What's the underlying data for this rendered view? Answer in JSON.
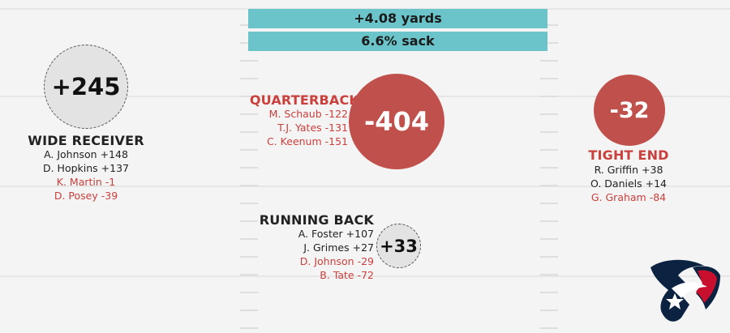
{
  "banners": {
    "yards": "+4.08 yards",
    "sack": "6.6% sack"
  },
  "wide_receiver": {
    "title": "WIDE RECEIVER",
    "total": "+245",
    "players": [
      {
        "label": "A. Johnson +148",
        "positive": true
      },
      {
        "label": "D. Hopkins +137",
        "positive": true
      },
      {
        "label": "K. Martin -1",
        "positive": false
      },
      {
        "label": "D. Posey -39",
        "positive": false
      }
    ]
  },
  "quarterback": {
    "title": "QUARTERBACK",
    "total": "-404",
    "players": [
      {
        "label": "M. Schaub -122",
        "positive": false
      },
      {
        "label": "T.J. Yates -131",
        "positive": false
      },
      {
        "label": "C. Keenum -151",
        "positive": false
      }
    ]
  },
  "tight_end": {
    "title": "TIGHT END",
    "total": "-32",
    "players": [
      {
        "label": "R. Griffin +38",
        "positive": true
      },
      {
        "label": "O. Daniels +14",
        "positive": true
      },
      {
        "label": "G. Graham -84",
        "positive": false
      }
    ]
  },
  "running_back": {
    "title": "RUNNING BACK",
    "total": "+33",
    "players": [
      {
        "label": "A. Foster +107",
        "positive": true
      },
      {
        "label": "J. Grimes +27",
        "positive": true
      },
      {
        "label": "D. Johnson -29",
        "positive": false
      },
      {
        "label": "B. Tate -72",
        "positive": false
      }
    ]
  },
  "colors": {
    "banner": "#6bc4c9",
    "negative_circle": "#c0504b",
    "negative_text": "#c9403c",
    "positive_circle": "#e3e3e3",
    "logo_navy": "#0b2240",
    "logo_red": "#c8102e"
  },
  "logo": {
    "icon": "houston-texans-logo-icon"
  }
}
